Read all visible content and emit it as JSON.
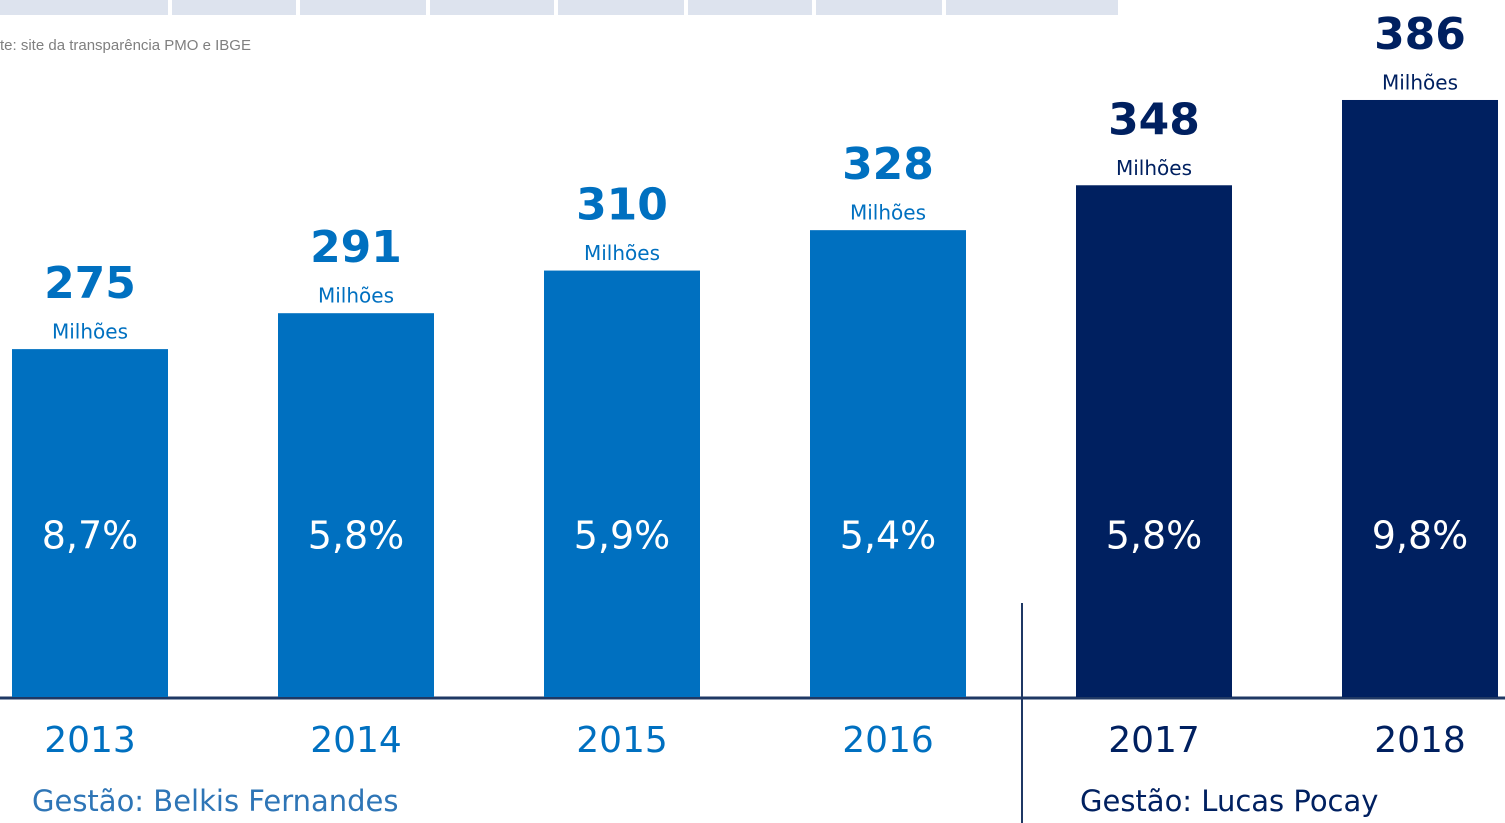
{
  "chart_data": {
    "type": "bar",
    "source": "te: site da transparência PMO e IBGE",
    "categories": [
      "2013",
      "2014",
      "2015",
      "2016",
      "2017",
      "2018"
    ],
    "values": [
      275,
      291,
      310,
      328,
      348,
      386
    ],
    "unit": "Milhões",
    "inner_labels": [
      "8,7%",
      "5,8%",
      "5,9%",
      "5,4%",
      "5,8%",
      "9,8%"
    ],
    "colors": [
      "#0070c0",
      "#0070c0",
      "#0070c0",
      "#0070c0",
      "#002060",
      "#002060"
    ],
    "label_colors": [
      "#0070c0",
      "#0070c0",
      "#0070c0",
      "#0070c0",
      "#002060",
      "#002060"
    ],
    "ylim": [
      120,
      390
    ],
    "groups": [
      {
        "label": "Gestão: Belkis Fernandes"
      },
      {
        "label": "Gestão: Lucas Pocay"
      }
    ]
  }
}
